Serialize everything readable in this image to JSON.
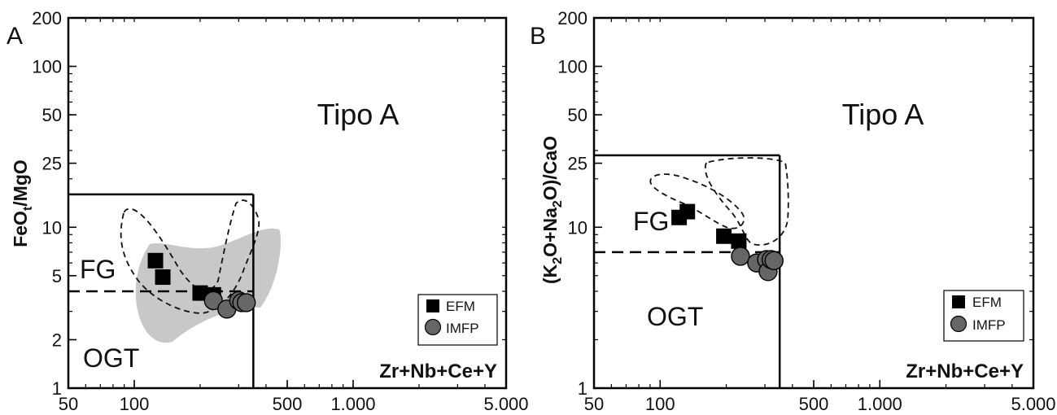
{
  "chart_data": [
    {
      "panel": "A",
      "type": "scatter",
      "xscale": "log",
      "yscale": "log",
      "xlim": [
        50,
        5000
      ],
      "ylim": [
        1,
        200
      ],
      "x_ticks": [
        {
          "v": 50,
          "label": "50"
        },
        {
          "v": 100,
          "label": "100"
        },
        {
          "v": 500,
          "label": "500"
        },
        {
          "v": 1000,
          "label": "1.000"
        },
        {
          "v": 5000,
          "label": "5.000"
        }
      ],
      "y_ticks": [
        {
          "v": 1,
          "label": "1"
        },
        {
          "v": 2,
          "label": "2"
        },
        {
          "v": 5,
          "label": "5"
        },
        {
          "v": 10,
          "label": "10"
        },
        {
          "v": 25,
          "label": "25"
        },
        {
          "v": 50,
          "label": "50"
        },
        {
          "v": 100,
          "label": "100"
        },
        {
          "v": 200,
          "label": "200"
        }
      ],
      "xlabel": "Zr+Nb+Ce+Y",
      "ylabel_main": "FeO",
      "ylabel_sub": "t",
      "ylabel_tail": "/MgO",
      "regions": {
        "a_type": "Tipo A",
        "fg": "FG",
        "ogt": "OGT"
      },
      "boundaries": {
        "x": 350,
        "y_top": 16,
        "y_split": 4
      },
      "legend": {
        "position": "bottom-right",
        "items": [
          "EFM",
          "IMFP"
        ]
      },
      "series": [
        {
          "name": "EFM",
          "marker": "square",
          "color": "#000000",
          "points": [
            [
              125,
              6.2
            ],
            [
              135,
              4.9
            ],
            [
              200,
              3.9
            ],
            [
              230,
              3.8
            ]
          ]
        },
        {
          "name": "IMFP",
          "marker": "circle",
          "color": "#666666",
          "points": [
            [
              230,
              3.5
            ],
            [
              265,
              3.1
            ],
            [
              300,
              3.5
            ],
            [
              310,
              3.4
            ],
            [
              325,
              3.4
            ]
          ]
        }
      ]
    },
    {
      "panel": "B",
      "type": "scatter",
      "xscale": "log",
      "yscale": "log",
      "xlim": [
        50,
        5000
      ],
      "ylim": [
        1,
        200
      ],
      "x_ticks": [
        {
          "v": 50,
          "label": "50"
        },
        {
          "v": 100,
          "label": "100"
        },
        {
          "v": 500,
          "label": "500"
        },
        {
          "v": 1000,
          "label": "1.000"
        },
        {
          "v": 5000,
          "label": "5.000"
        }
      ],
      "y_ticks": [
        {
          "v": 1,
          "label": "1"
        },
        {
          "v": 10,
          "label": "10"
        },
        {
          "v": 25,
          "label": "25"
        },
        {
          "v": 50,
          "label": "50"
        },
        {
          "v": 100,
          "label": "100"
        },
        {
          "v": 200,
          "label": "200"
        }
      ],
      "xlabel": "Zr+Nb+Ce+Y",
      "ylabel_parts": [
        "(K",
        "2",
        "O+Na",
        "2",
        "O)/CaO"
      ],
      "regions": {
        "a_type": "Tipo A",
        "fg": "FG",
        "ogt": "OGT"
      },
      "boundaries": {
        "x": 350,
        "y_top": 28,
        "y_split": 7
      },
      "legend": {
        "position": "bottom-right",
        "items": [
          "EFM",
          "IMFP"
        ]
      },
      "series": [
        {
          "name": "EFM",
          "marker": "square",
          "color": "#000000",
          "points": [
            [
              122,
              11.5
            ],
            [
              133,
              12.5
            ],
            [
              195,
              8.8
            ],
            [
              228,
              8.2
            ]
          ]
        },
        {
          "name": "IMFP",
          "marker": "circle",
          "color": "#666666",
          "points": [
            [
              232,
              6.6
            ],
            [
              275,
              6.0
            ],
            [
              305,
              6.3
            ],
            [
              310,
              5.3
            ],
            [
              320,
              6.3
            ],
            [
              330,
              6.2
            ]
          ]
        }
      ]
    }
  ]
}
